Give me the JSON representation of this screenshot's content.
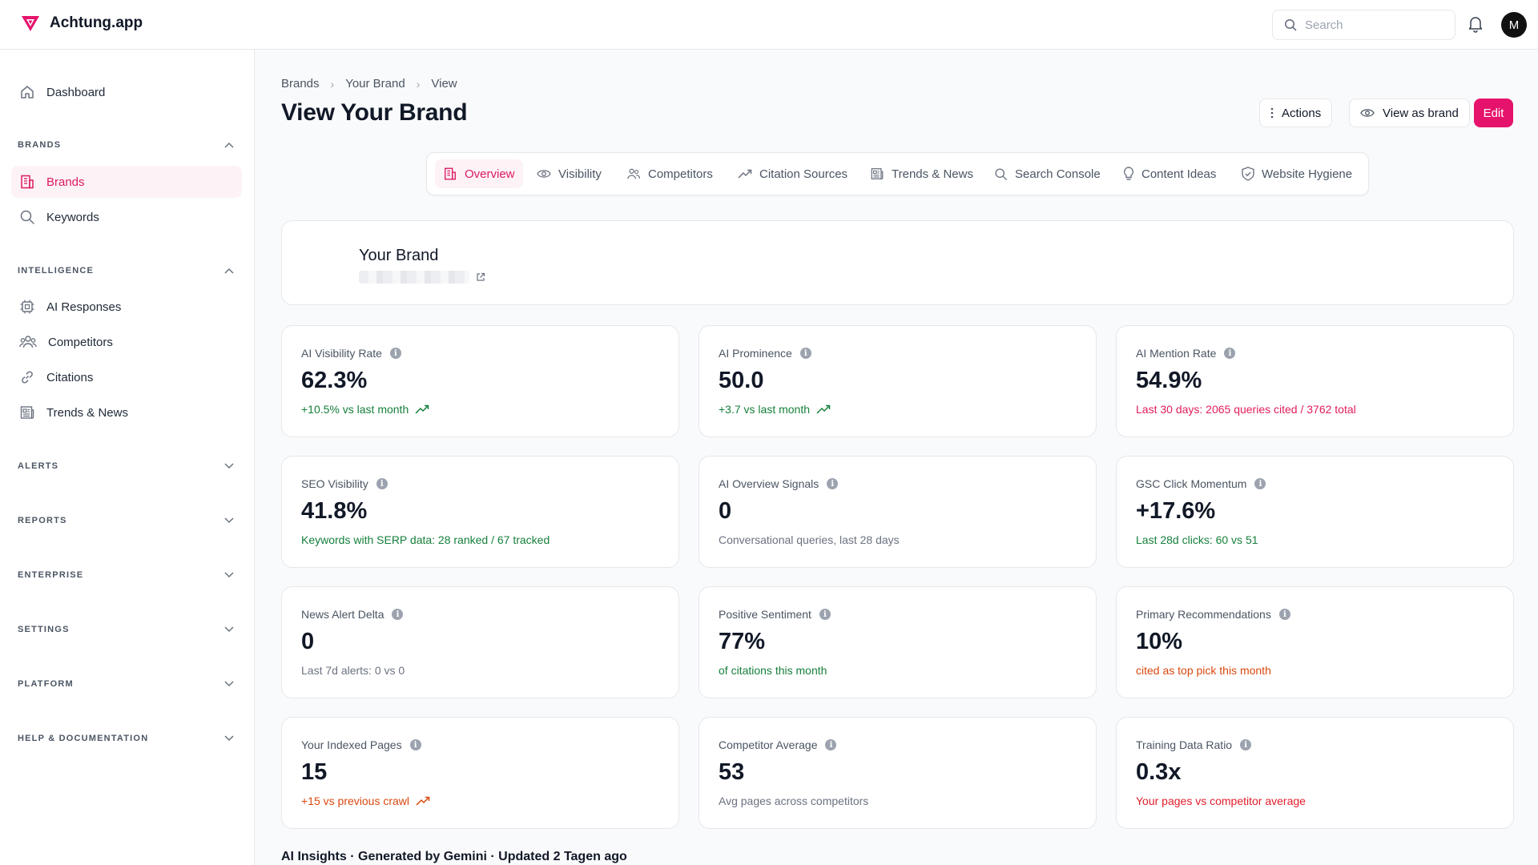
{
  "app": {
    "name": "Achtung.app",
    "accent": "#e6136c"
  },
  "header": {
    "search_placeholder": "Search",
    "avatar_initial": "M"
  },
  "sidebar": {
    "dashboard": "Dashboard",
    "sections": {
      "brands": "BRANDS",
      "intelligence": "INTELLIGENCE",
      "alerts": "ALERTS",
      "reports": "REPORTS",
      "enterprise": "ENTERPRISE",
      "settings": "SETTINGS",
      "platform": "PLATFORM",
      "help": "HELP & DOCUMENTATION"
    },
    "brands_items": [
      "Brands",
      "Keywords"
    ],
    "intelligence_items": [
      "AI Responses",
      "Competitors",
      "Citations",
      "Trends & News"
    ]
  },
  "breadcrumb": [
    "Brands",
    "Your Brand",
    "View"
  ],
  "page": {
    "title": "View Your Brand",
    "actions_label": "Actions",
    "view_as_brand_label": "View as brand",
    "edit_label": "Edit"
  },
  "tabs": [
    "Overview",
    "Visibility",
    "Competitors",
    "Citation Sources",
    "Trends & News",
    "Search Console",
    "Content Ideas",
    "Website Hygiene"
  ],
  "brand": {
    "name": "Your Brand"
  },
  "metrics": [
    {
      "label": "AI Visibility Rate",
      "value": "62.3%",
      "sub": "+10.5% vs last month",
      "sub_color": "#16803c",
      "trend_icon": true
    },
    {
      "label": "AI Prominence",
      "value": "50.0",
      "sub": "+3.7 vs last month",
      "sub_color": "#16803c",
      "trend_icon": true
    },
    {
      "label": "AI Mention Rate",
      "value": "54.9%",
      "sub": "Last 30 days: 2065 queries cited / 3762 total",
      "sub_color": "#e11d5a",
      "trend_icon": false
    },
    {
      "label": "SEO Visibility",
      "value": "41.8%",
      "sub": "Keywords with SERP data: 28 ranked / 67 tracked",
      "sub_color": "#16803c",
      "trend_icon": false
    },
    {
      "label": "AI Overview Signals",
      "value": "0",
      "sub": "Conversational queries, last 28 days",
      "sub_color": "#6b7280",
      "trend_icon": false
    },
    {
      "label": "GSC Click Momentum",
      "value": "+17.6%",
      "sub": "Last 28d clicks: 60 vs 51",
      "sub_color": "#16803c",
      "trend_icon": false
    },
    {
      "label": "News Alert Delta",
      "value": "0",
      "sub": "Last 7d alerts: 0 vs 0",
      "sub_color": "#6b7280",
      "trend_icon": false
    },
    {
      "label": "Positive Sentiment",
      "value": "77%",
      "sub": "of citations this month",
      "sub_color": "#16803c",
      "trend_icon": false
    },
    {
      "label": "Primary Recommendations",
      "value": "10%",
      "sub": "cited as top pick this month",
      "sub_color": "#d9480f",
      "trend_icon": false
    },
    {
      "label": "Your Indexed Pages",
      "value": "15",
      "sub": "+15 vs previous crawl",
      "sub_color": "#d9480f",
      "trend_icon": true
    },
    {
      "label": "Competitor Average",
      "value": "53",
      "sub": "Avg pages across competitors",
      "sub_color": "#6b7280",
      "trend_icon": false
    },
    {
      "label": "Training Data Ratio",
      "value": "0.3x",
      "sub": "Your pages vs competitor average",
      "sub_color": "#e11d2a",
      "trend_icon": false
    }
  ],
  "insights_heading": "AI Insights · Generated by Gemini · Updated 2 Tagen ago"
}
